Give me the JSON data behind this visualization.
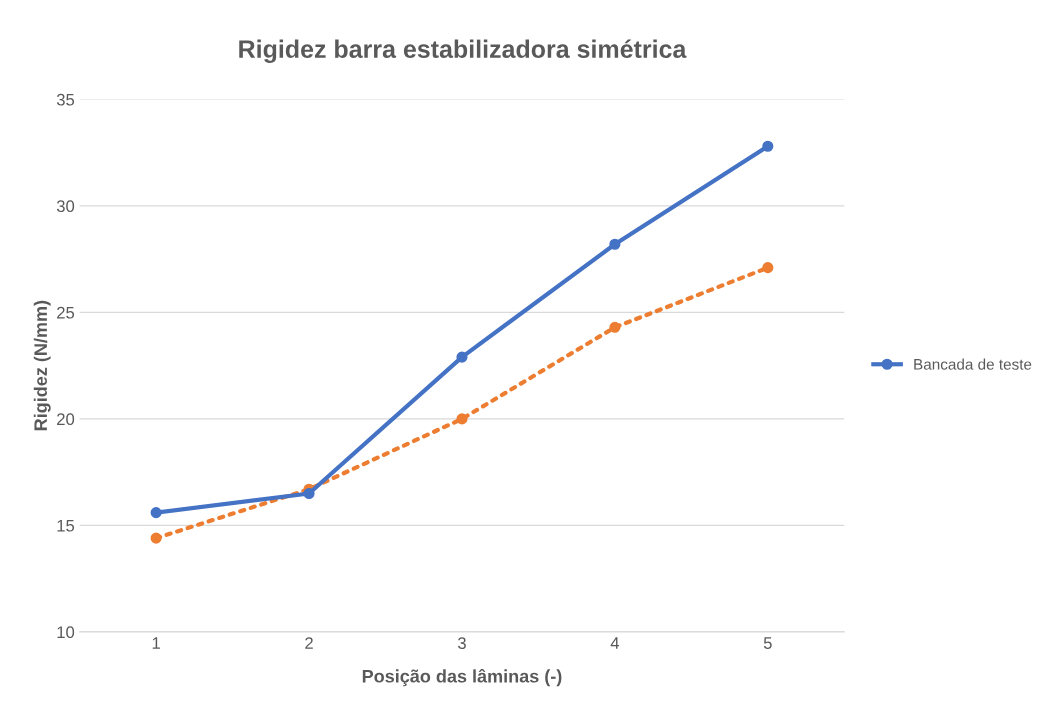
{
  "chart_data": {
    "type": "line",
    "title": "Rigidez barra estabilizadora simétrica",
    "xlabel": "Posição das lâminas (-)",
    "ylabel": "Rigidez (N/mm)",
    "categories": [
      "1",
      "2",
      "3",
      "4",
      "5"
    ],
    "series": [
      {
        "name": "Bancada de teste",
        "color": "#4472c4",
        "values": [
          15.6,
          16.5,
          22.9,
          28.2,
          32.8
        ],
        "line_style": "solid"
      },
      {
        "color": "#ed7d31",
        "values": [
          14.4,
          16.7,
          20.0,
          24.3,
          27.1
        ],
        "line_style": "dotted"
      }
    ],
    "ylim": [
      10,
      35
    ],
    "yticks": [
      10,
      15,
      20,
      25,
      30,
      35
    ],
    "grid": "y",
    "legend": "right",
    "marker": "circle"
  }
}
